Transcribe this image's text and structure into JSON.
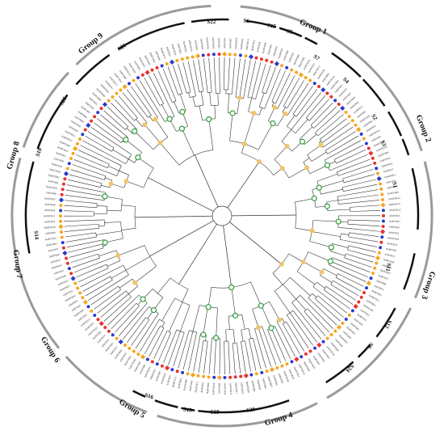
{
  "figure": {
    "colors": {
      "outer_arc": "#9a9a9a",
      "subgroup_arc": "#111111",
      "branch": "#333333",
      "bootstrap_high": "#2e9e3a",
      "bootstrap_mid": "#f2c46d",
      "leaf_orange": "#f5a623",
      "leaf_red": "#e8342d",
      "leaf_blue": "#2b3bd1"
    },
    "groups": [
      "Group 1",
      "Group 2",
      "Group 3",
      "Group 4",
      "Group 5",
      "Group 6",
      "Group 7",
      "Group 8",
      "Group 9"
    ],
    "subgroups": [
      "S22",
      "S6",
      "S15",
      "S5",
      "S7",
      "S4",
      "S2",
      "S3",
      "S1",
      "S11",
      "S12",
      "S9",
      "S24",
      "S20",
      "S19",
      "S13",
      "S16",
      "S14",
      "S18",
      "S25",
      "S21"
    ],
    "leaf_labels": [
      "AtMYB56",
      "AtMYB67",
      "HuMYB29",
      "HuMYB42",
      "AtMYB121",
      "HuMYB52",
      "AtMYB59",
      "HuMYB48",
      "AtMYB60",
      "AtMYB96",
      "HuMYB97",
      "AtMYB94",
      "AtMYB30",
      "HuMYB89",
      "HuMYB98",
      "AtMYB105",
      "HuMYB11",
      "AtMYB117",
      "HuMYB34",
      "AtMYB88",
      "AtMYB124",
      "HuMYB68",
      "AtMYB91",
      "HuMYB72",
      "AtMYB45",
      "HuMYB60",
      "AtMYB95",
      "HuMYB73",
      "AtMYB87",
      "HuMYB18",
      "AtMYB93",
      "HuMYB23",
      "AtMYB104",
      "AtMYB81",
      "HuMYB94",
      "AtMYB106",
      "HuMYB09",
      "AtMYB16",
      "HuMYB43",
      "AtMYB17",
      "HuMYB25",
      "AtMYB41",
      "AtMYB74",
      "HuMYB85",
      "AtMYB102",
      "HuMYB79",
      "AtMYB112",
      "AtMYB55",
      "HuMYB91",
      "AtMYB26",
      "AtMYB32",
      "HuMYB04",
      "AtMYB14",
      "HuMYB37",
      "AtMYB15",
      "HuMYB40",
      "AtMYB21",
      "HuMYB57",
      "AtMYB27",
      "AtMYB46",
      "AtMYB70",
      "HuMYB41",
      "HuMYB12",
      "AtMYB23",
      "HuMYB38",
      "AtMYB33",
      "HuMYB31",
      "AtMYB44",
      "AtMYB48",
      "HuMYB51",
      "AtMYB68",
      "HuMYB76",
      "AtMYB69",
      "HuMYB82",
      "AtMYB103",
      "HuMYB95"
    ]
  }
}
